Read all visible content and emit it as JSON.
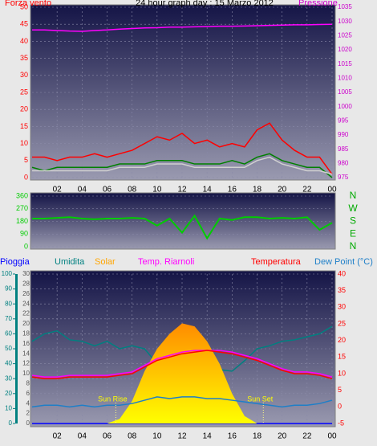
{
  "chart_data": [
    {
      "type": "line",
      "title": "24 hour graph day : 15 Marzo 2012",
      "ylabel": "Forza vento",
      "y2label": "Pressione",
      "x": [
        0,
        1,
        2,
        3,
        4,
        5,
        6,
        7,
        8,
        9,
        10,
        11,
        12,
        13,
        14,
        15,
        16,
        17,
        18,
        19,
        20,
        21,
        22,
        23,
        24
      ],
      "xlim": [
        0,
        24
      ],
      "xticks": [
        {
          "value": 2,
          "label": "02"
        },
        {
          "value": 4,
          "label": "04"
        },
        {
          "value": 6,
          "label": "06"
        },
        {
          "value": 8,
          "label": "08"
        },
        {
          "value": 10,
          "label": "10"
        },
        12,
        14,
        16,
        18,
        20,
        22,
        {
          "value": 24,
          "label": "00"
        }
      ],
      "ylim": [
        0,
        50
      ],
      "yticks": [
        0,
        5,
        10,
        15,
        20,
        25,
        30,
        35,
        40,
        45,
        50
      ],
      "y2lim": [
        975,
        1035
      ],
      "y2ticks": [
        975,
        980,
        985,
        990,
        995,
        1000,
        1005,
        1010,
        1015,
        1020,
        1025,
        1030,
        1035
      ],
      "grid": true,
      "series": [
        {
          "color": "#ff0000",
          "axis": "y",
          "values": [
            6,
            6,
            5,
            6,
            6,
            7,
            6,
            7,
            8,
            10,
            12,
            11,
            13,
            10,
            11,
            9,
            10,
            9,
            14,
            16,
            11,
            8,
            6,
            6,
            1
          ]
        },
        {
          "color": "#008000",
          "axis": "y",
          "values": [
            3,
            2,
            3,
            3,
            3,
            3,
            3,
            4,
            4,
            4,
            5,
            5,
            5,
            4,
            4,
            4,
            5,
            4,
            6,
            7,
            5,
            4,
            3,
            3,
            0
          ]
        },
        {
          "color": "#d0d0d0",
          "axis": "y",
          "values": [
            2,
            2,
            2,
            2,
            2,
            2,
            2,
            3,
            3,
            3,
            4,
            4,
            4,
            3,
            3,
            3,
            3,
            3,
            5,
            6,
            4,
            3,
            2,
            2,
            1
          ]
        },
        {
          "color": "#ff00ff",
          "axis": "y2",
          "values": [
            1027,
            1027,
            1026.8,
            1026.6,
            1026.5,
            1026.8,
            1027,
            1027.3,
            1027.5,
            1027.7,
            1027.8,
            1028,
            1028,
            1028.1,
            1028.2,
            1028.3,
            1028.3,
            1028.4,
            1028.5,
            1028.6,
            1028.7,
            1028.8,
            1028.8,
            1028.9,
            1029
          ]
        }
      ]
    },
    {
      "type": "line",
      "x": [
        0,
        1,
        2,
        3,
        4,
        5,
        6,
        7,
        8,
        9,
        10,
        11,
        12,
        13,
        14,
        15,
        16,
        17,
        18,
        19,
        20,
        21,
        22,
        23,
        24
      ],
      "xlim": [
        0,
        24
      ],
      "ylim": [
        0,
        360
      ],
      "yticks": [
        0,
        90,
        180,
        270,
        360
      ],
      "y2lim": [
        0,
        360
      ],
      "y2ticks": [
        {
          "value": 360,
          "label": "N"
        },
        {
          "value": 270,
          "label": "W"
        },
        {
          "value": 180,
          "label": "S"
        },
        {
          "value": 90,
          "label": "E"
        },
        {
          "value": 0,
          "label": "N"
        }
      ],
      "grid": true,
      "series": [
        {
          "color": "#00cc00",
          "axis": "y",
          "values": [
            200,
            200,
            205,
            210,
            200,
            195,
            200,
            200,
            205,
            200,
            150,
            200,
            100,
            220,
            60,
            200,
            190,
            210,
            210,
            200,
            205,
            200,
            210,
            120,
            170
          ]
        }
      ]
    },
    {
      "type": "line",
      "x": [
        0,
        1,
        2,
        3,
        4,
        5,
        6,
        7,
        8,
        9,
        10,
        11,
        12,
        13,
        14,
        15,
        16,
        17,
        18,
        19,
        20,
        21,
        22,
        23,
        24
      ],
      "xlim": [
        0,
        24
      ],
      "xticks": [
        {
          "value": 2,
          "label": "02"
        },
        {
          "value": 4,
          "label": "04"
        },
        {
          "value": 6,
          "label": "06"
        },
        {
          "value": 8,
          "label": "08"
        },
        {
          "value": 10,
          "label": "10"
        },
        12,
        14,
        16,
        18,
        20,
        22,
        {
          "value": 24,
          "label": "00"
        }
      ],
      "ylim": [
        0,
        100
      ],
      "yticks": [
        0,
        10,
        20,
        30,
        40,
        50,
        60,
        70,
        80,
        90,
        100
      ],
      "y3lim": [
        0,
        30
      ],
      "y3ticks": [
        0,
        2,
        4,
        6,
        8,
        10,
        12,
        14,
        16,
        18,
        20,
        22,
        24,
        26,
        28,
        30
      ],
      "y2lim": [
        -5,
        40
      ],
      "y2ticks": [
        -5,
        0,
        5,
        10,
        15,
        20,
        25,
        30,
        35,
        40
      ],
      "grid": true,
      "annotations": [
        {
          "text": "Sun Rise",
          "x": 6.7
        },
        {
          "text": "Sun Set",
          "x": 18.5
        }
      ],
      "series": [
        {
          "name": "Pioggia",
          "color": "#0000ff",
          "axis": "y3",
          "values": [
            0,
            0,
            0,
            0,
            0,
            0,
            0,
            0,
            0,
            0,
            0,
            0,
            0,
            0,
            0,
            0,
            0,
            0,
            0,
            0,
            0,
            0,
            0,
            0,
            0
          ]
        },
        {
          "name": "Umidita",
          "color": "#008080",
          "axis": "y",
          "values": [
            55,
            60,
            62,
            56,
            55,
            52,
            55,
            50,
            52,
            50,
            40,
            40,
            37,
            36,
            38,
            36,
            35,
            42,
            50,
            52,
            55,
            56,
            58,
            60,
            65
          ]
        },
        {
          "name": "Solar",
          "color": "#ffa500",
          "axis": "y",
          "style": "area",
          "values": [
            0,
            0,
            0,
            0,
            0,
            0,
            0,
            3,
            15,
            35,
            50,
            60,
            67,
            65,
            55,
            40,
            20,
            5,
            0,
            0,
            0,
            0,
            0,
            0,
            0
          ]
        },
        {
          "name": "Temp. Riarnoli",
          "color": "#ff00ff",
          "axis": "y2",
          "values": [
            9.5,
            9,
            9,
            9.5,
            9.5,
            9.5,
            9.5,
            10,
            10.5,
            12.5,
            14.5,
            15.5,
            16.5,
            17,
            17,
            17,
            16.5,
            15.5,
            14.5,
            13,
            11.5,
            10.5,
            10.5,
            10,
            9
          ]
        },
        {
          "name": "Temperatura",
          "color": "#ff0000",
          "axis": "y2",
          "values": [
            9,
            8.5,
            8.5,
            9,
            9,
            9,
            9,
            9.5,
            10,
            12,
            14,
            15,
            16,
            16.5,
            17,
            16.5,
            16,
            15,
            14,
            12.5,
            11,
            10,
            10,
            9.5,
            8.5
          ]
        },
        {
          "name": "Dew Point (°C)",
          "color": "#1e7fc8",
          "axis": "y2",
          "values": [
            0,
            0.5,
            0.5,
            0,
            0.5,
            0,
            0.5,
            0.5,
            1,
            2,
            3,
            2.5,
            3,
            3,
            2.5,
            2.5,
            2,
            1.5,
            1,
            0.5,
            0,
            0.5,
            0.5,
            1,
            2
          ]
        }
      ]
    }
  ]
}
